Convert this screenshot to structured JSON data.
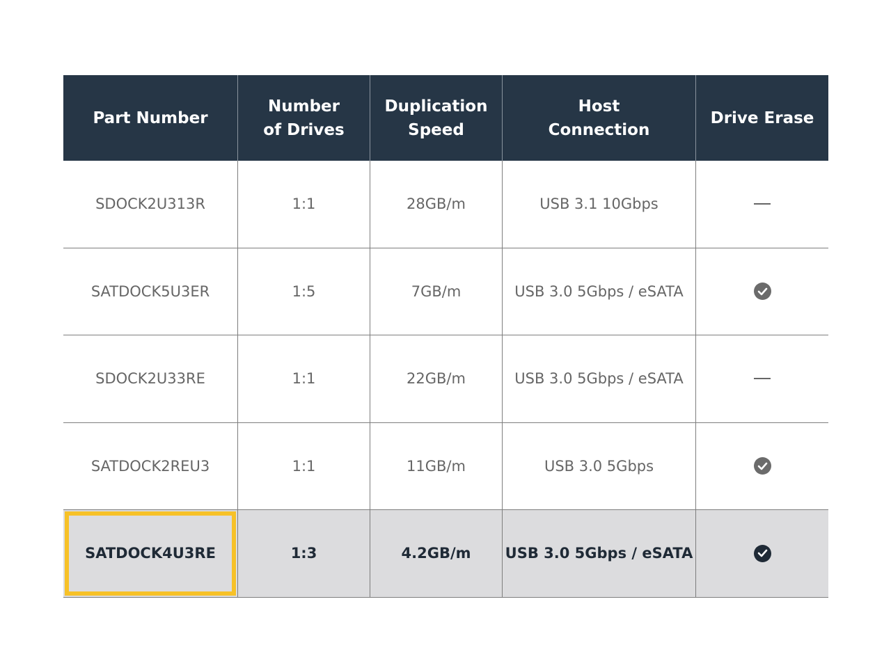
{
  "headers": [
    "Part Number",
    "Number\nof Drives",
    "Duplication\nSpeed",
    "Host\nConnection",
    "Drive Erase"
  ],
  "rows": [
    {
      "part": "SDOCK2U313R",
      "drives": "1:1",
      "speed": "28GB/m",
      "host": "USB 3.1 10Gbps",
      "erase": false
    },
    {
      "part": "SATDOCK5U3ER",
      "drives": "1:5",
      "speed": "7GB/m",
      "host": "USB 3.0 5Gbps / eSATA",
      "erase": true
    },
    {
      "part": "SDOCK2U33RE",
      "drives": "1:1",
      "speed": "22GB/m",
      "host": "USB 3.0 5Gbps / eSATA",
      "erase": false
    },
    {
      "part": "SATDOCK2REU3",
      "drives": "1:1",
      "speed": "11GB/m",
      "host": "USB 3.0 5Gbps",
      "erase": true
    },
    {
      "part": "SATDOCK4U3RE",
      "drives": "1:3",
      "speed": "4.2GB/m",
      "host": "USB 3.0 5Gbps / eSATA",
      "erase": true,
      "highlighted": true
    }
  ],
  "colors": {
    "header_bg": "#263646",
    "highlight_bg": "#dcdcde",
    "highlight_border": "#f7c127",
    "check_gray": "#6b6b6b",
    "check_dark": "#1f2a36"
  },
  "icons": {
    "yes": "check-circle-icon",
    "no": "dash-icon"
  }
}
